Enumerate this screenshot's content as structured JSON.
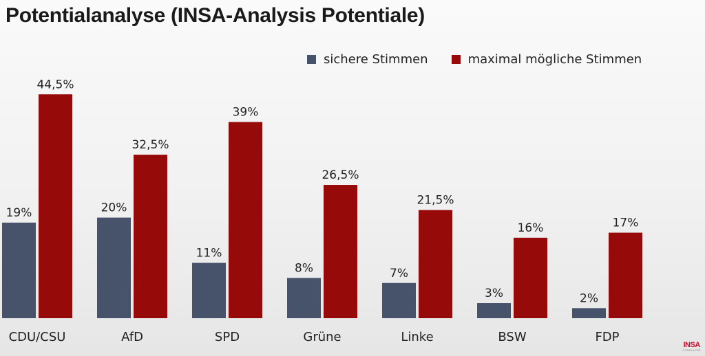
{
  "title": "Potentialanalyse (INSA-Analysis Potentiale)",
  "logo": {
    "name": "INSA",
    "sub": "CONSULERE"
  },
  "colors": {
    "sichere": "#46536a",
    "maximal": "#960a0a"
  },
  "legend": [
    {
      "label": "sichere Stimmen",
      "color": "#46536a"
    },
    {
      "label": "maximal mögliche Stimmen",
      "color": "#960a0a"
    }
  ],
  "chart_data": {
    "type": "bar",
    "title": "Potentialanalyse (INSA-Analysis Potentiale)",
    "xlabel": "",
    "ylabel": "",
    "ylim": [
      0,
      50
    ],
    "grid": false,
    "legend_position": "top-right",
    "categories": [
      "CDU/CSU",
      "AfD",
      "SPD",
      "Grüne",
      "Linke",
      "BSW",
      "FDP"
    ],
    "series": [
      {
        "name": "sichere Stimmen",
        "values": [
          19,
          20,
          11,
          8,
          7,
          3,
          2
        ],
        "labels": [
          "19%",
          "20%",
          "11%",
          "8%",
          "7%",
          "3%",
          "2%"
        ]
      },
      {
        "name": "maximal mögliche Stimmen",
        "values": [
          44.5,
          32.5,
          39,
          26.5,
          21.5,
          16,
          17
        ],
        "labels": [
          "44,5%",
          "32,5%",
          "39%",
          "26,5%",
          "21,5%",
          "16%",
          "17%"
        ]
      }
    ]
  }
}
